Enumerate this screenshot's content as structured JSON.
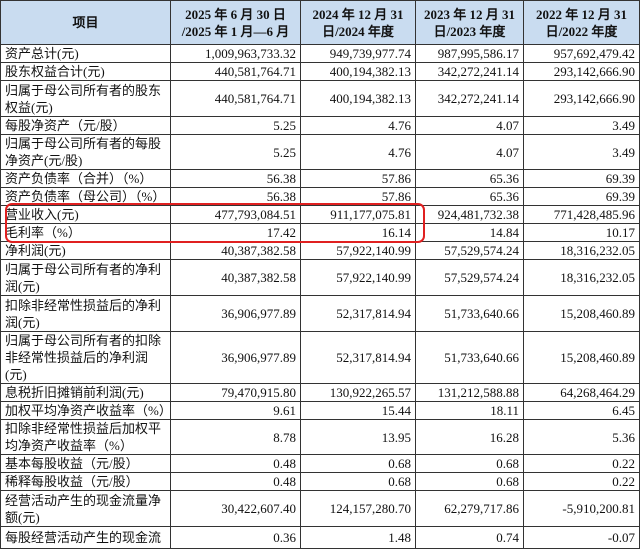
{
  "table": {
    "header": [
      [
        "项目"
      ],
      [
        "2025 年 6 月 30 日",
        "/2025 年 1 月—6 月"
      ],
      [
        "2024 年 12 月 31",
        "日/2024 年度"
      ],
      [
        "2023 年 12 月 31",
        "日/2023 年度"
      ],
      [
        "2022 年 12 月 31",
        "日/2022 年度"
      ]
    ],
    "rows": [
      [
        "资产总计(元)",
        "1,009,963,733.32",
        "949,739,977.74",
        "987,995,586.17",
        "957,692,479.42"
      ],
      [
        "股东权益合计(元)",
        "440,581,764.71",
        "400,194,382.13",
        "342,272,241.14",
        "293,142,666.90"
      ],
      [
        "归属于母公司所有者的股东权益(元)",
        "440,581,764.71",
        "400,194,382.13",
        "342,272,241.14",
        "293,142,666.90"
      ],
      [
        "每股净资产（元/股）",
        "5.25",
        "4.76",
        "4.07",
        "3.49"
      ],
      [
        "归属于母公司所有者的每股净资产(元/股)",
        "5.25",
        "4.76",
        "4.07",
        "3.49"
      ],
      [
        "资产负债率（合并）（%）",
        "56.38",
        "57.86",
        "65.36",
        "69.39"
      ],
      [
        "资产负债率（母公司）（%）",
        "56.38",
        "57.86",
        "65.36",
        "69.39"
      ],
      [
        "营业收入(元)",
        "477,793,084.51",
        "911,177,075.81",
        "924,481,732.38",
        "771,428,485.96"
      ],
      [
        "毛利率（%）",
        "17.42",
        "16.14",
        "14.84",
        "10.17"
      ],
      [
        "净利润(元)",
        "40,387,382.58",
        "57,922,140.99",
        "57,529,574.24",
        "18,316,232.05"
      ],
      [
        "归属于母公司所有者的净利润(元)",
        "40,387,382.58",
        "57,922,140.99",
        "57,529,574.24",
        "18,316,232.05"
      ],
      [
        "扣除非经常性损益后的净利润(元)",
        "36,906,977.89",
        "52,317,814.94",
        "51,733,640.66",
        "15,208,460.89"
      ],
      [
        "归属于母公司所有者的扣除非经常性损益后的净利润(元)",
        "36,906,977.89",
        "52,317,814.94",
        "51,733,640.66",
        "15,208,460.89"
      ],
      [
        "息税折旧摊销前利润(元)",
        "79,470,915.80",
        "130,922,265.57",
        "131,212,588.88",
        "64,268,464.29"
      ],
      [
        "加权平均净资产收益率（%）",
        "9.61",
        "15.44",
        "18.11",
        "6.45"
      ],
      [
        "扣除非经常性损益后加权平均净资产收益率（%）",
        "8.78",
        "13.95",
        "16.28",
        "5.36"
      ],
      [
        "基本每股收益（元/股）",
        "0.48",
        "0.68",
        "0.68",
        "0.22"
      ],
      [
        "稀释每股收益（元/股）",
        "0.48",
        "0.68",
        "0.68",
        "0.22"
      ],
      [
        "经营活动产生的现金流量净额(元)",
        "30,422,607.40",
        "124,157,280.70",
        "62,279,717.86",
        "-5,910,200.81"
      ],
      [
        "每股经营活动产生的现金流",
        "0.36",
        "1.48",
        "0.74",
        "-0.07"
      ]
    ]
  }
}
